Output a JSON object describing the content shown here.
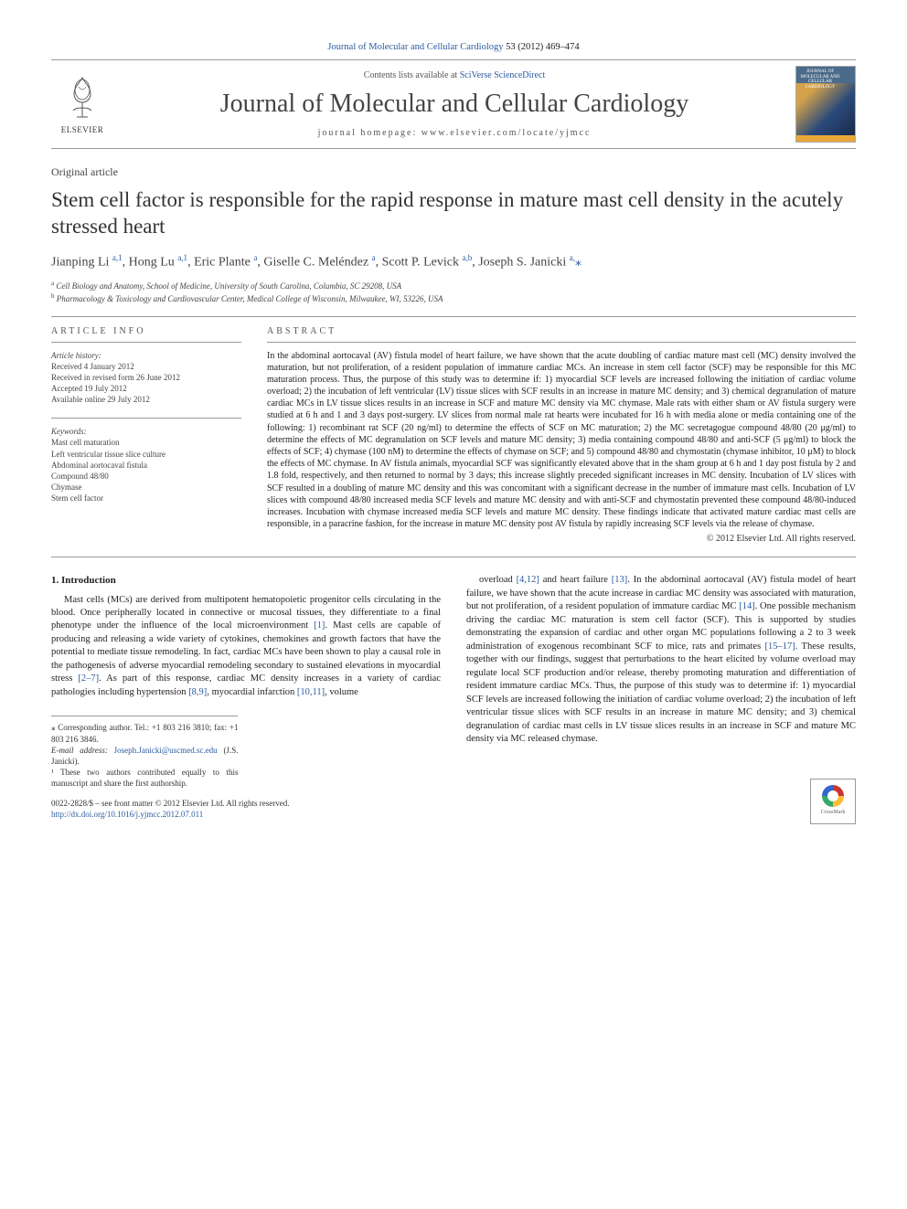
{
  "top_link": {
    "journal": "Journal of Molecular and Cellular Cardiology",
    "cite": " 53 (2012) 469–474"
  },
  "header": {
    "contents_prefix": "Contents lists available at ",
    "contents_link": "SciVerse ScienceDirect",
    "journal_name": "Journal of Molecular and Cellular Cardiology",
    "homepage_prefix": "journal homepage: ",
    "homepage_url": "www.elsevier.com/locate/yjmcc",
    "publisher": "ELSEVIER",
    "cover_label": "JOURNAL OF MOLECULAR AND CELLULAR CARDIOLOGY"
  },
  "article_type": "Original article",
  "title": "Stem cell factor is responsible for the rapid response in mature mast cell density in the acutely stressed heart",
  "authors_html": "Jianping Li <span class='sup'>a,1</span>, Hong Lu <span class='sup'>a,1</span>, Eric Plante <span class='sup'>a</span>, Giselle C. Meléndez <span class='sup'>a</span>, Scott P. Levick <span class='sup'>a,b</span>, Joseph S. Janicki <span class='sup'>a,</span><span class='star'>⁎</span>",
  "affiliations": [
    {
      "sup": "a",
      "text": "Cell Biology and Anatomy, School of Medicine, University of South Carolina, Columbia, SC 29208, USA"
    },
    {
      "sup": "b",
      "text": "Pharmacology & Toxicology and Cardiovascular Center, Medical College of Wisconsin, Milwaukee, WI, 53226, USA"
    }
  ],
  "info_head": "ARTICLE INFO",
  "history": {
    "label": "Article history:",
    "lines": [
      "Received 4 January 2012",
      "Received in revised form 26 June 2012",
      "Accepted 19 July 2012",
      "Available online 29 July 2012"
    ]
  },
  "keywords": {
    "label": "Keywords:",
    "lines": [
      "Mast cell maturation",
      "Left ventricular tissue slice culture",
      "Abdominal aortocaval fistula",
      "Compound 48/80",
      "Chymase",
      "Stem cell factor"
    ]
  },
  "abs_head": "ABSTRACT",
  "abstract": "In the abdominal aortocaval (AV) fistula model of heart failure, we have shown that the acute doubling of cardiac mature mast cell (MC) density involved the maturation, but not proliferation, of a resident population of immature cardiac MCs. An increase in stem cell factor (SCF) may be responsible for this MC maturation process. Thus, the purpose of this study was to determine if: 1) myocardial SCF levels are increased following the initiation of cardiac volume overload; 2) the incubation of left ventricular (LV) tissue slices with SCF results in an increase in mature MC density; and 3) chemical degranulation of mature cardiac MCs in LV tissue slices results in an increase in SCF and mature MC density via MC chymase. Male rats with either sham or AV fistula surgery were studied at 6 h and 1 and 3 days post-surgery. LV slices from normal male rat hearts were incubated for 16 h with media alone or media containing one of the following: 1) recombinant rat SCF (20 ng/ml) to determine the effects of SCF on MC maturation; 2) the MC secretagogue compound 48/80 (20 μg/ml) to determine the effects of MC degranulation on SCF levels and mature MC density; 3) media containing compound 48/80 and anti-SCF (5 μg/ml) to block the effects of SCF; 4) chymase (100 nM) to determine the effects of chymase on SCF; and 5) compound 48/80 and chymostatin (chymase inhibitor, 10 μM) to block the effects of MC chymase. In AV fistula animals, myocardial SCF was significantly elevated above that in the sham group at 6 h and 1 day post fistula by 2 and 1.8 fold, respectively, and then returned to normal by 3 days; this increase slightly preceded significant increases in MC density. Incubation of LV slices with SCF resulted in a doubling of mature MC density and this was concomitant with a significant decrease in the number of immature mast cells. Incubation of LV slices with compound 48/80 increased media SCF levels and mature MC density and with anti-SCF and chymostatin prevented these compound 48/80-induced increases. Incubation with chymase increased media SCF levels and mature MC density. These findings indicate that activated mature cardiac mast cells are responsible, in a paracrine fashion, for the increase in mature MC density post AV fistula by rapidly increasing SCF levels via the release of chymase.",
  "abs_copyright": "© 2012 Elsevier Ltd. All rights reserved.",
  "section_head": "1. Introduction",
  "col1_p1": "Mast cells (MCs) are derived from multipotent hematopoietic progenitor cells circulating in the blood. Once peripherally located in connective or mucosal tissues, they differentiate to a final phenotype under the influence of the local microenvironment [1]. Mast cells are capable of producing and releasing a wide variety of cytokines, chemokines and growth factors that have the potential to mediate tissue remodeling. In fact, cardiac MCs have been shown to play a causal role in the pathogenesis of adverse myocardial remodeling secondary to sustained elevations in myocardial stress [2–7]. As part of this response, cardiac MC density increases in a variety of cardiac pathologies including hypertension [8,9], myocardial infarction [10,11], volume",
  "col2_p1": "overload [4,12] and heart failure [13]. In the abdominal aortocaval (AV) fistula model of heart failure, we have shown that the acute increase in cardiac MC density was associated with maturation, but not proliferation, of a resident population of immature cardiac MC [14]. One possible mechanism driving the cardiac MC maturation is stem cell factor (SCF). This is supported by studies demonstrating the expansion of cardiac and other organ MC populations following a 2 to 3 week administration of exogenous recombinant SCF to mice, rats and primates [15–17]. These results, together with our findings, suggest that perturbations to the heart elicited by volume overload may regulate local SCF production and/or release, thereby promoting maturation and differentiation of resident immature cardiac MCs. Thus, the purpose of this study was to determine if: 1) myocardial SCF levels are increased following the initiation of cardiac volume overload; 2) the incubation of left ventricular tissue slices with SCF results in an increase in mature MC density; and 3) chemical degranulation of cardiac mast cells in LV tissue slices results in an increase in SCF and mature MC density via MC released chymase.",
  "footnotes": {
    "corr": "⁎ Corresponding author. Tel.: +1 803 216 3810; fax: +1 803 216 3846.",
    "email_label": "E-mail address: ",
    "email": "Joseph.Janicki@uscmed.sc.edu",
    "email_suffix": " (J.S. Janicki).",
    "shared": "¹ These two authors contributed equally to this manuscript and share the first authorship."
  },
  "bottom": {
    "issn_line": "0022-2828/$ – see front matter © 2012 Elsevier Ltd. All rights reserved.",
    "doi": "http://dx.doi.org/10.1016/j.yjmcc.2012.07.011",
    "crossmark": "CrossMark"
  },
  "colors": {
    "link": "#2a5b9f",
    "text": "#222",
    "rule": "#999"
  }
}
